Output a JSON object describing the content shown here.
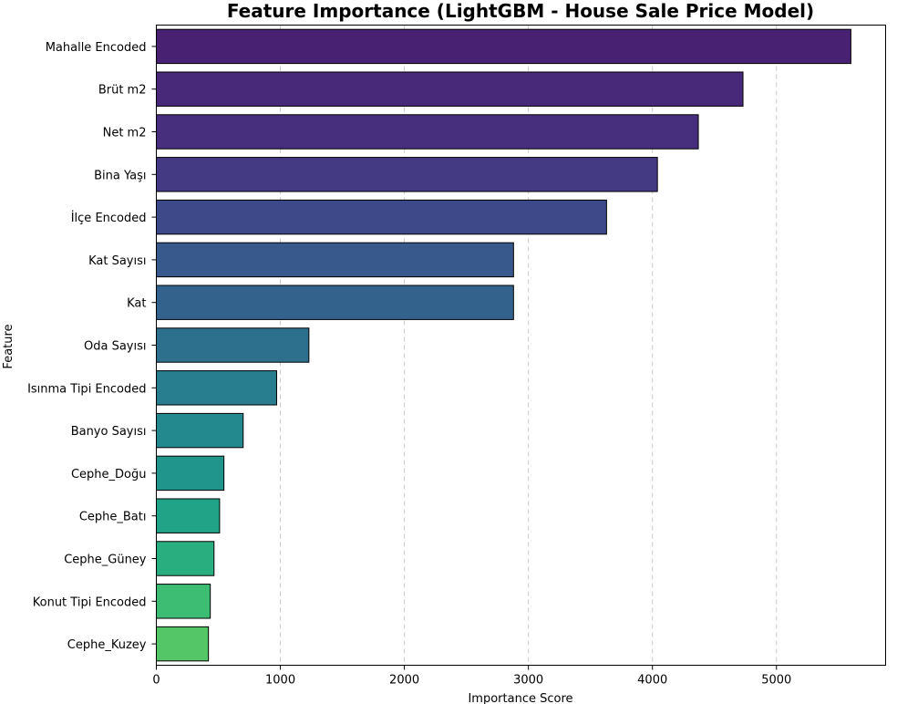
{
  "chart_data": {
    "type": "bar",
    "orientation": "horizontal",
    "title": "Feature Importance (LightGBM - House Sale Price Model)",
    "xlabel": "Importance Score",
    "ylabel": "Feature",
    "xlim": [
      0,
      5880
    ],
    "xticks": [
      0,
      1000,
      2000,
      3000,
      4000,
      5000
    ],
    "grid": "x-dashed",
    "categories": [
      "Mahalle Encoded",
      "Brüt m2",
      "Net m2",
      "Bina Yaşı",
      "İlçe Encoded",
      "Kat Sayısı",
      "Kat",
      "Oda Sayısı",
      "Isınma Tipi Encoded",
      "Banyo Sayısı",
      "Cephe_Doğu",
      "Cephe_Batı",
      "Cephe_Güney",
      "Konut Tipi Encoded",
      "Cephe_Kuzey"
    ],
    "values": [
      5600,
      4730,
      4370,
      4040,
      3630,
      2880,
      2880,
      1230,
      970,
      700,
      545,
      510,
      465,
      435,
      420
    ],
    "colors": [
      "#482173",
      "#482878",
      "#472f7d",
      "#443983",
      "#3e4989",
      "#38598c",
      "#33638d",
      "#2d708e",
      "#287d8e",
      "#23898e",
      "#1f958b",
      "#20a386",
      "#29af7f",
      "#3dbc74",
      "#55c667"
    ]
  }
}
